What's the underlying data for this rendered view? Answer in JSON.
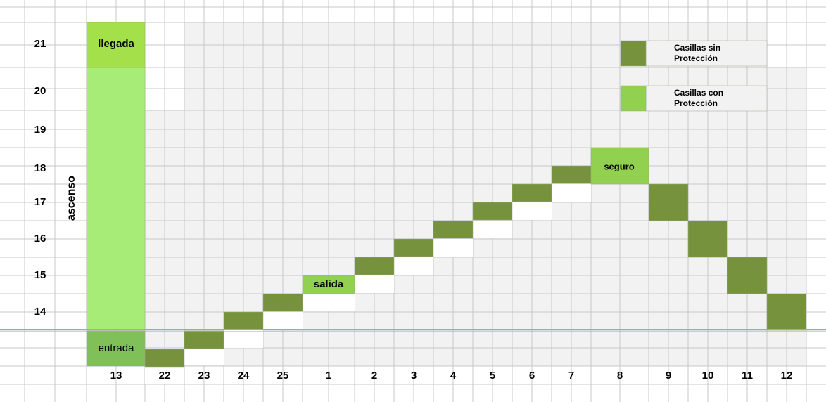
{
  "row_labels": [
    "21",
    "20",
    "19",
    "18",
    "17",
    "16",
    "15",
    "14"
  ],
  "column_labels": [
    "13",
    "22",
    "23",
    "24",
    "25",
    "1",
    "2",
    "3",
    "4",
    "5",
    "6",
    "7",
    "8",
    "9",
    "10",
    "11",
    "12"
  ],
  "cells": {
    "llegada": "llegada",
    "entrada": "entrada",
    "salida": "salida",
    "seguro": "seguro"
  },
  "side_label": "ascenso",
  "legend": [
    {
      "label": "Casillas sin Protección"
    },
    {
      "label": "Casillas con Protección"
    }
  ]
}
